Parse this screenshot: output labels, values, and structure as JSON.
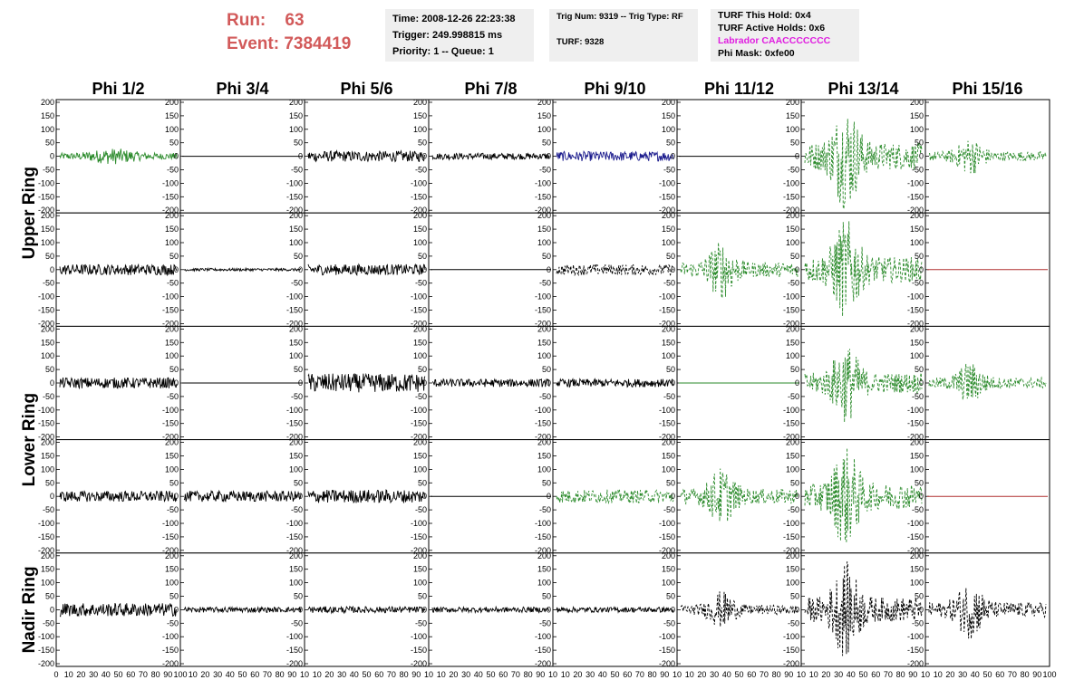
{
  "header": {
    "run_label": "Run:",
    "run_value": "63",
    "event_label": "Event:",
    "event_value": "7384419",
    "time_text": "Time: 2008-12-26 22:23:38",
    "trigger_text": "Trigger: 249.998815 ms",
    "priority_text": "Priority: 1 -- Queue: 1",
    "trig_num_text": "Trig Num: 9319 -- Trig Type: RF",
    "turf_text": "TURF: 9328",
    "turf_hold_text": "TURF This Hold: 0x4",
    "turf_active_text": "TURF Active Holds: 0x6",
    "labrador_text": "Labrador CAACCCCCCC",
    "phi_mask_text": "Phi Mask: 0xfe00"
  },
  "columns": [
    "Phi 1/2",
    "Phi 3/4",
    "Phi 5/6",
    "Phi 7/8",
    "Phi 9/10",
    "Phi 11/12",
    "Phi 13/14",
    "Phi 15/16"
  ],
  "rings": [
    "Upper Ring",
    "Lower Ring",
    "Nadir Ring"
  ],
  "colors": {
    "black": "#000000",
    "green": "#2a8a2a",
    "blue": "#1a1a8c",
    "red": "#b03030",
    "run_text": "#d25a5a",
    "labrador": "#e01ee0",
    "info_bg": "#efefef"
  },
  "chart_data": {
    "type": "line",
    "x_range": [
      0,
      100
    ],
    "y_range": [
      -210,
      210
    ],
    "y_ticks": [
      "200",
      "150",
      "100",
      "50",
      "0",
      "-50",
      "-100",
      "-150",
      "-200"
    ],
    "x_ticks_first": [
      "0",
      "10",
      "20",
      "30",
      "40",
      "50",
      "60",
      "70",
      "80",
      "90",
      "100"
    ],
    "x_ticks_other": [
      "10",
      "20",
      "30",
      "40",
      "50",
      "60",
      "70",
      "80",
      "90",
      "10"
    ],
    "x_ticks_last": [
      "10",
      "20",
      "30",
      "40",
      "50",
      "60",
      "70",
      "80",
      "90",
      "100"
    ],
    "panels": [
      [
        {
          "color": "green",
          "style": "solid",
          "amp": 30,
          "env": "mid"
        },
        {
          "color": "black",
          "style": "flat",
          "amp": 0
        },
        {
          "color": "black",
          "style": "solid",
          "amp": 20,
          "env": "flat"
        },
        {
          "color": "black",
          "style": "solid",
          "amp": 12,
          "env": "flat"
        },
        {
          "color": "blue",
          "style": "solid",
          "amp": 18,
          "env": "flat"
        },
        {
          "color": "black",
          "style": "flat",
          "amp": 0
        },
        {
          "color": "green",
          "style": "dashed",
          "amp": 200,
          "env": "burst"
        },
        {
          "color": "green",
          "style": "dashed",
          "amp": 70,
          "env": "burst"
        }
      ],
      [
        {
          "color": "black",
          "style": "solid",
          "amp": 20,
          "env": "flat"
        },
        {
          "color": "black",
          "style": "solid",
          "amp": 5,
          "env": "flat"
        },
        {
          "color": "black",
          "style": "solid",
          "amp": 20,
          "env": "flat"
        },
        {
          "color": "black",
          "style": "flat",
          "amp": 0
        },
        {
          "color": "black",
          "style": "dashed",
          "amp": 20,
          "env": "flat"
        },
        {
          "color": "green",
          "style": "dashed",
          "amp": 110,
          "env": "burst"
        },
        {
          "color": "green",
          "style": "dashed",
          "amp": 190,
          "env": "burst"
        },
        {
          "color": "red",
          "style": "flat",
          "amp": 0
        }
      ],
      [
        {
          "color": "black",
          "style": "solid",
          "amp": 20,
          "env": "flat"
        },
        {
          "color": "black",
          "style": "flat",
          "amp": 0
        },
        {
          "color": "black",
          "style": "solid",
          "amp": 35,
          "env": "flat"
        },
        {
          "color": "black",
          "style": "solid",
          "amp": 15,
          "env": "flat"
        },
        {
          "color": "black",
          "style": "solid",
          "amp": 15,
          "env": "flat"
        },
        {
          "color": "green",
          "style": "flat",
          "amp": 0
        },
        {
          "color": "green",
          "style": "dashed",
          "amp": 150,
          "env": "burst"
        },
        {
          "color": "green",
          "style": "dashed",
          "amp": 80,
          "env": "burst"
        }
      ],
      [
        {
          "color": "black",
          "style": "solid",
          "amp": 20,
          "env": "flat"
        },
        {
          "color": "black",
          "style": "solid",
          "amp": 20,
          "env": "flat"
        },
        {
          "color": "black",
          "style": "solid",
          "amp": 25,
          "env": "flat"
        },
        {
          "color": "black",
          "style": "flat",
          "amp": 0
        },
        {
          "color": "green",
          "style": "dashed",
          "amp": 25,
          "env": "flat"
        },
        {
          "color": "green",
          "style": "dashed",
          "amp": 110,
          "env": "burst"
        },
        {
          "color": "green",
          "style": "dashed",
          "amp": 190,
          "env": "burst"
        },
        {
          "color": "red",
          "style": "flat",
          "amp": 0
        }
      ],
      [
        {
          "color": "black",
          "style": "solid",
          "amp": 25,
          "env": "flat"
        },
        {
          "color": "black",
          "style": "solid",
          "amp": 10,
          "env": "flat"
        },
        {
          "color": "black",
          "style": "solid",
          "amp": 12,
          "env": "flat"
        },
        {
          "color": "black",
          "style": "solid",
          "amp": 10,
          "env": "flat"
        },
        {
          "color": "black",
          "style": "solid",
          "amp": 10,
          "env": "flat"
        },
        {
          "color": "black",
          "style": "dashed",
          "amp": 70,
          "env": "burst"
        },
        {
          "color": "black",
          "style": "dashed",
          "amp": 180,
          "env": "burst"
        },
        {
          "color": "black",
          "style": "dashed",
          "amp": 110,
          "env": "burst"
        }
      ]
    ]
  }
}
